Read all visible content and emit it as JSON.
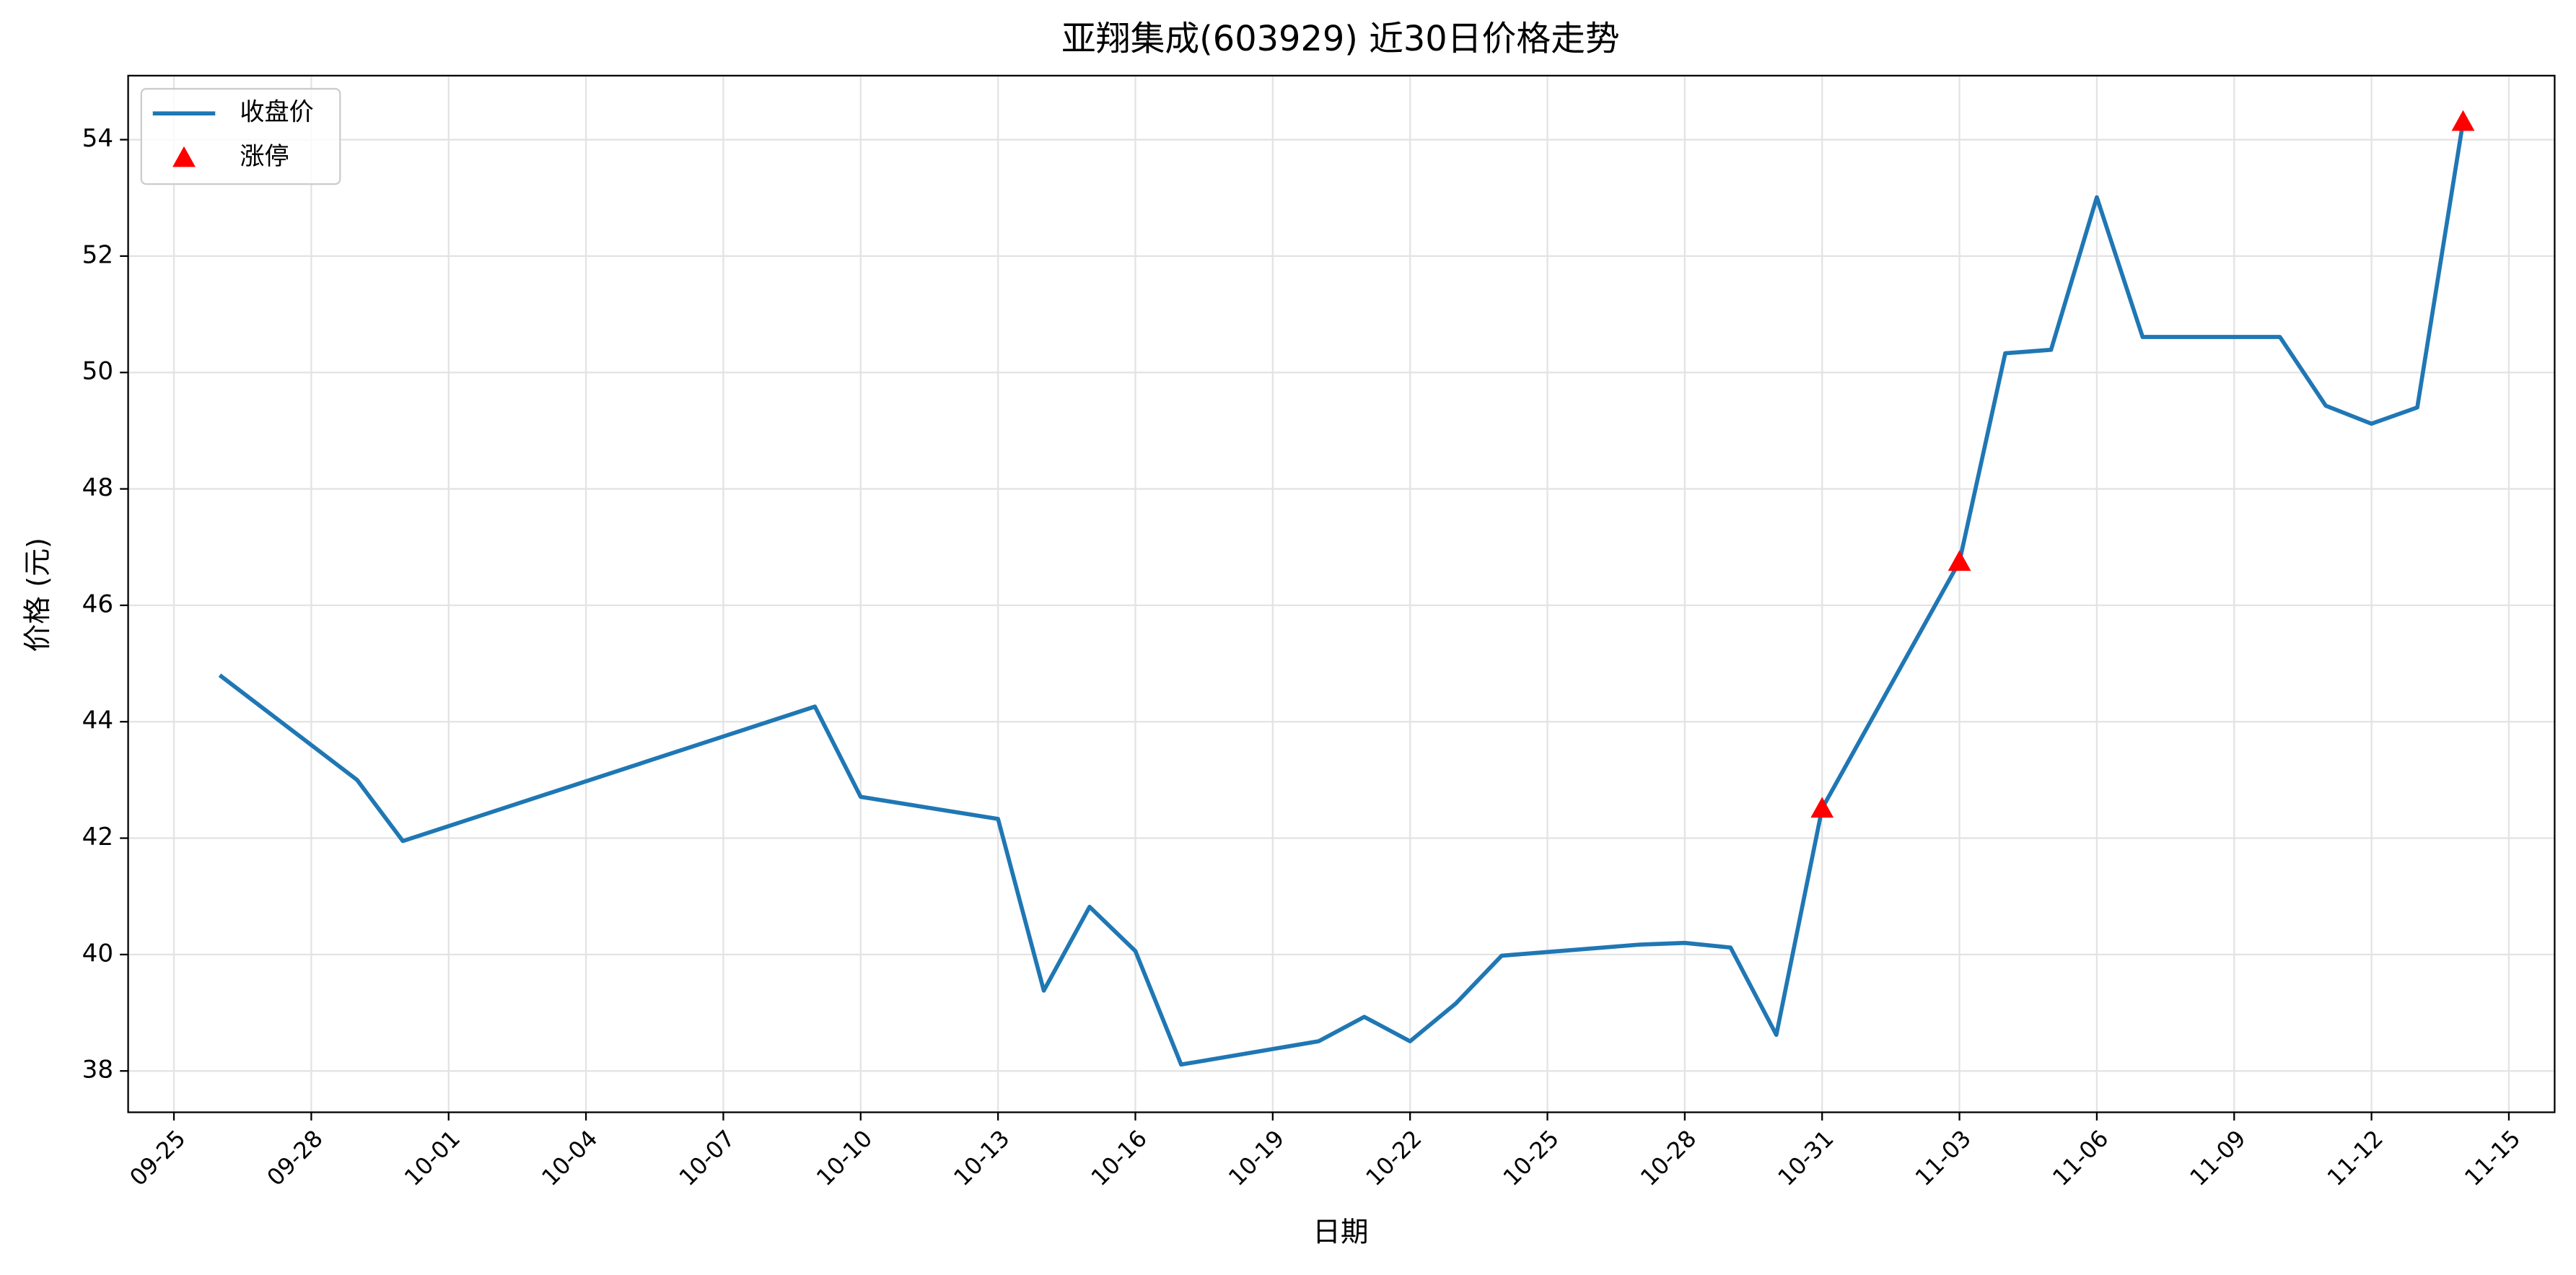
{
  "chart_data": {
    "type": "line",
    "title": "亚翔集成(603929) 近30日价格走势",
    "x_label": "日期",
    "y_label": "价格 (元)",
    "series": [
      {
        "name": "收盘价",
        "color": "#1f77b4",
        "type": "line",
        "x": [
          "09-26",
          "09-29",
          "09-30",
          "10-09",
          "10-10",
          "10-13",
          "10-14",
          "10-15",
          "10-16",
          "10-17",
          "10-20",
          "10-21",
          "10-22",
          "10-23",
          "10-24",
          "10-27",
          "10-28",
          "10-29",
          "10-30",
          "10-31",
          "11-03",
          "11-04",
          "11-05",
          "11-06",
          "11-07",
          "11-10",
          "11-11",
          "11-12",
          "11-13",
          "11-14"
        ],
        "values": [
          44.8,
          43.0,
          41.95,
          44.26,
          42.71,
          42.33,
          39.38,
          40.82,
          40.06,
          38.11,
          38.51,
          38.93,
          38.51,
          39.16,
          39.98,
          40.17,
          40.2,
          40.12,
          38.62,
          42.51,
          46.75,
          50.33,
          50.39,
          53.01,
          50.61,
          50.61,
          49.43,
          49.12,
          49.4,
          54.31
        ]
      },
      {
        "name": "涨停",
        "color": "#ff0000",
        "type": "scatter",
        "marker": "triangle",
        "x": [
          "10-31",
          "11-03",
          "11-14"
        ],
        "values": [
          42.51,
          46.75,
          54.31
        ]
      }
    ],
    "xlim": [
      "09-24",
      "11-16"
    ],
    "xticks": [
      "09-25",
      "09-28",
      "10-01",
      "10-04",
      "10-07",
      "10-10",
      "10-13",
      "10-16",
      "10-19",
      "10-22",
      "10-25",
      "10-28",
      "10-31",
      "11-03",
      "11-06",
      "11-09",
      "11-12",
      "11-15"
    ],
    "ylim": [
      37.29,
      55.1
    ],
    "yticks": [
      38,
      40,
      42,
      44,
      46,
      48,
      50,
      52,
      54
    ],
    "grid": true,
    "legend": "upper-left"
  }
}
